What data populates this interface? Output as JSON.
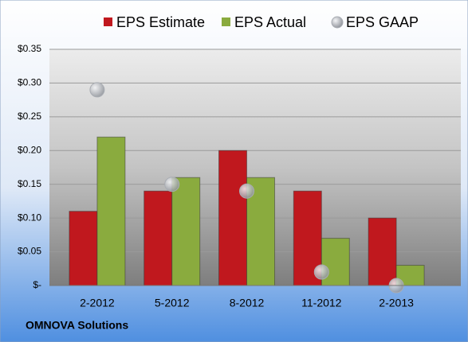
{
  "chart_data": {
    "type": "bar",
    "categories": [
      "2-2012",
      "5-2012",
      "8-2012",
      "11-2012",
      "2-2013"
    ],
    "series": [
      {
        "name": "EPS Estimate",
        "color": "#c0181e",
        "values": [
          0.11,
          0.14,
          0.2,
          0.14,
          0.1
        ]
      },
      {
        "name": "EPS Actual",
        "color": "#8aab3e",
        "values": [
          0.22,
          0.16,
          0.16,
          0.07,
          0.03
        ]
      },
      {
        "name": "EPS GAAP",
        "color": "#a9adb3",
        "marker": "circle",
        "values": [
          0.29,
          0.15,
          0.14,
          0.02,
          0.0
        ]
      }
    ],
    "ylim": [
      0,
      0.35
    ],
    "yticks": [
      {
        "value": 0,
        "label": "$-"
      },
      {
        "value": 0.05,
        "label": "$0.05"
      },
      {
        "value": 0.1,
        "label": "$0.10"
      },
      {
        "value": 0.15,
        "label": "$0.15"
      },
      {
        "value": 0.2,
        "label": "$0.20"
      },
      {
        "value": 0.25,
        "label": "$0.25"
      },
      {
        "value": 0.3,
        "label": "$0.30"
      },
      {
        "value": 0.35,
        "label": "$0.35"
      }
    ],
    "grid": true,
    "legend": "top",
    "footer": "OMNOVA Solutions"
  }
}
